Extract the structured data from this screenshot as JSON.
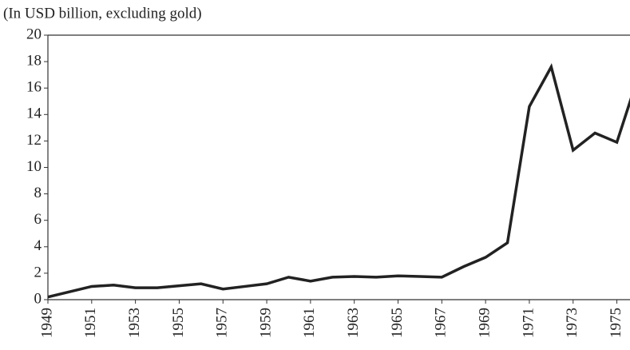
{
  "chart_data": {
    "type": "line",
    "subtitle": "(In USD billion, excluding gold)",
    "x": [
      1949,
      1950,
      1951,
      1952,
      1953,
      1954,
      1955,
      1956,
      1957,
      1958,
      1959,
      1960,
      1961,
      1962,
      1963,
      1964,
      1965,
      1966,
      1967,
      1968,
      1969,
      1970,
      1971,
      1972,
      1973,
      1974,
      1975,
      1976
    ],
    "series": [
      {
        "color": "#222222",
        "values": [
          0.2,
          0.6,
          1.0,
          1.1,
          0.9,
          0.9,
          1.05,
          1.2,
          0.8,
          1.0,
          1.2,
          1.7,
          1.4,
          1.7,
          1.75,
          1.7,
          1.8,
          1.75,
          1.7,
          2.5,
          3.2,
          4.3,
          14.6,
          17.6,
          11.3,
          12.6,
          11.9,
          17
        ]
      }
    ],
    "xlim": [
      1949,
      1975.6
    ],
    "xticks": [
      1949,
      1951,
      1953,
      1955,
      1957,
      1959,
      1961,
      1963,
      1965,
      1967,
      1969,
      1971,
      1973,
      1975
    ],
    "ylim": [
      0,
      20
    ],
    "yticks": [
      0,
      2,
      4,
      6,
      8,
      10,
      12,
      14,
      16,
      18,
      20
    ]
  }
}
